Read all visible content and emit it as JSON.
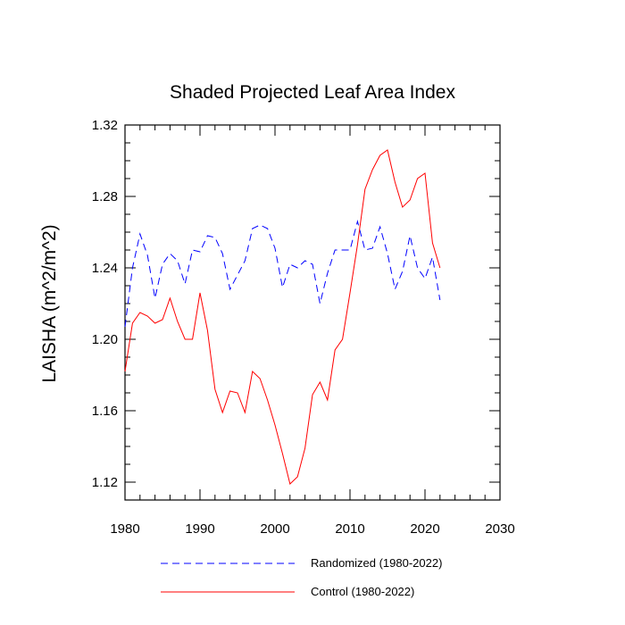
{
  "chart_data": {
    "type": "line",
    "title": "Shaded Projected Leaf Area Index",
    "ylabel": "LAISHA  (m^2/m^2)",
    "xlabel": "",
    "xlim": [
      1980,
      2030
    ],
    "ylim": [
      1.11,
      1.32
    ],
    "xticks": [
      1980,
      1990,
      2000,
      2010,
      2020,
      2030
    ],
    "xtick_labels": [
      "1980",
      "1990",
      "2000",
      "2010",
      "2020",
      "2030"
    ],
    "yticks": [
      1.12,
      1.16,
      1.2,
      1.24,
      1.28,
      1.32
    ],
    "ytick_labels": [
      "1.12",
      "1.16",
      "1.20",
      "1.24",
      "1.28",
      "1.32"
    ],
    "legend_position": "bottom",
    "x": [
      1980,
      1981,
      1982,
      1983,
      1984,
      1985,
      1986,
      1987,
      1988,
      1989,
      1990,
      1991,
      1992,
      1993,
      1994,
      1995,
      1996,
      1997,
      1998,
      1999,
      2000,
      2001,
      2002,
      2003,
      2004,
      2005,
      2006,
      2007,
      2008,
      2009,
      2010,
      2011,
      2012,
      2013,
      2014,
      2015,
      2016,
      2017,
      2018,
      2019,
      2020,
      2021,
      2022
    ],
    "series": [
      {
        "name": "Randomized (1980-2022)",
        "color": "#0000ff",
        "style": "dashed",
        "values": [
          1.207,
          1.24,
          1.259,
          1.247,
          1.223,
          1.242,
          1.248,
          1.244,
          1.231,
          1.25,
          1.249,
          1.258,
          1.257,
          1.248,
          1.228,
          1.236,
          1.244,
          1.262,
          1.264,
          1.262,
          1.251,
          1.229,
          1.242,
          1.24,
          1.244,
          1.242,
          1.22,
          1.237,
          1.25,
          1.25,
          1.25,
          1.266,
          1.25,
          1.251,
          1.263,
          1.248,
          1.228,
          1.238,
          1.258,
          1.24,
          1.234,
          1.246,
          1.222
        ]
      },
      {
        "name": "Control (1980-2022)",
        "color": "#ff0000",
        "style": "solid",
        "values": [
          1.182,
          1.209,
          1.215,
          1.213,
          1.209,
          1.211,
          1.223,
          1.21,
          1.2,
          1.2,
          1.226,
          1.205,
          1.172,
          1.159,
          1.171,
          1.17,
          1.159,
          1.182,
          1.178,
          1.166,
          1.152,
          1.136,
          1.119,
          1.123,
          1.139,
          1.169,
          1.176,
          1.166,
          1.194,
          1.2,
          1.226,
          1.253,
          1.284,
          1.295,
          1.303,
          1.306,
          1.288,
          1.274,
          1.278,
          1.29,
          1.293,
          1.254,
          1.24
        ]
      }
    ]
  }
}
